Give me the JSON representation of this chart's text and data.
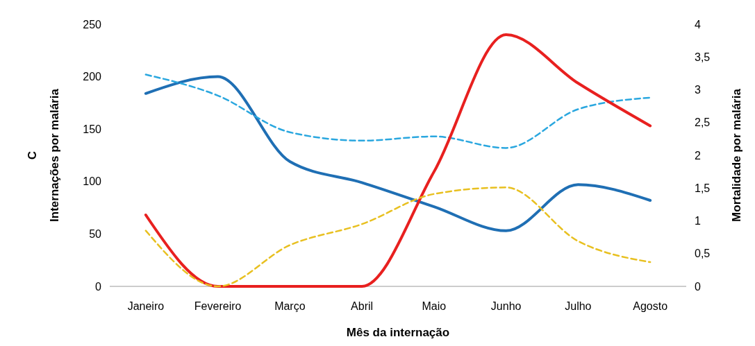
{
  "chart_data": {
    "type": "line",
    "xlabel": "Mês da internação",
    "ylabel": "Internações por malária",
    "y2label": "Mortalidade  por malária",
    "annotations": [
      "C"
    ],
    "categories": [
      "Janeiro",
      "Fevereiro",
      "Março",
      "Abril",
      "Maio",
      "Junho",
      "Julho",
      "Agosto"
    ],
    "ylim": [
      0,
      250
    ],
    "yticks": [
      0,
      50,
      100,
      150,
      200,
      250
    ],
    "y2lim": [
      0,
      4
    ],
    "y2ticks": [
      0,
      {
        "value": 0.5,
        "label": "0,5"
      },
      1,
      {
        "value": 1.5,
        "label": "1,5"
      },
      2,
      {
        "value": 2.5,
        "label": "2,5"
      },
      3,
      {
        "value": 3.5,
        "label": "3,5"
      },
      4
    ],
    "grid": false,
    "marker": "none",
    "series": [
      {
        "color": "#1f6fb4",
        "line_style": "solid",
        "values": [
          184,
          200,
          119,
          99,
          76,
          53,
          97,
          82
        ]
      },
      {
        "color": "#2aa7df",
        "line_style": "dashed",
        "values": [
          202,
          182,
          147,
          139,
          143,
          132,
          169,
          180
        ]
      },
      {
        "color": "#e8201f",
        "line_style": "solid",
        "axis": "y2",
        "values": [
          1.09,
          0,
          0,
          0,
          1.75,
          3.84,
          3.1,
          2.45
        ]
      },
      {
        "color": "#e8c020",
        "line_style": "dashed",
        "axis": "y2",
        "values": [
          0.85,
          0,
          0.63,
          0.95,
          1.41,
          1.51,
          0.69,
          0.37
        ]
      }
    ]
  }
}
